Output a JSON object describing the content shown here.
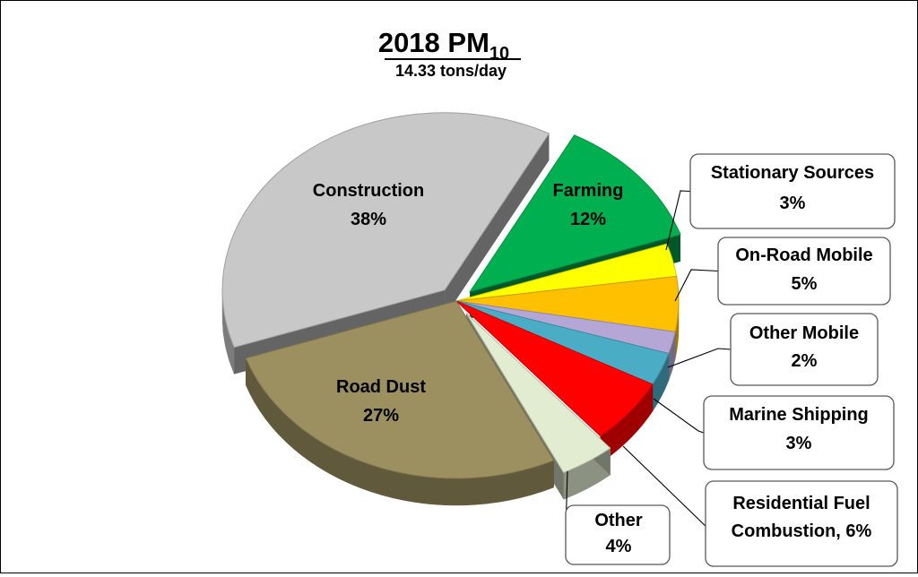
{
  "chart_data": {
    "type": "pie",
    "title_main": "2018 PM",
    "title_sub": "10",
    "subtitle": "14.33 tons/day",
    "units": "%",
    "slices": [
      {
        "name": "Farming",
        "value": 12,
        "value_label": "12%",
        "color": "#00b050",
        "exploded": true
      },
      {
        "name": "Stationary Sources",
        "value": 3,
        "value_label": "3%",
        "color": "#ffff00",
        "exploded": false
      },
      {
        "name": "On-Road Mobile",
        "value": 5,
        "value_label": "5%",
        "color": "#ffc000",
        "exploded": false
      },
      {
        "name": "Other Mobile",
        "value": 2,
        "value_label": "2%",
        "color": "#b4a7d6",
        "exploded": false
      },
      {
        "name": "Marine Shipping",
        "value": 3,
        "value_label": "3%",
        "color": "#4bacc6",
        "exploded": false
      },
      {
        "name": "Residential Fuel",
        "name2": "Combustion, 6%",
        "value": 6,
        "value_label": "",
        "color": "#ff0000",
        "exploded": false
      },
      {
        "name": "Other",
        "value": 4,
        "value_label": "4%",
        "color": "#e2ecd0",
        "exploded": true
      },
      {
        "name": "Road Dust",
        "value": 27,
        "value_label": "27%",
        "color": "#9c9060",
        "exploded": false
      },
      {
        "name": "Construction",
        "value": 38,
        "value_label": "38%",
        "color": "#c8c8c8",
        "exploded": true
      }
    ],
    "legend": "none"
  }
}
